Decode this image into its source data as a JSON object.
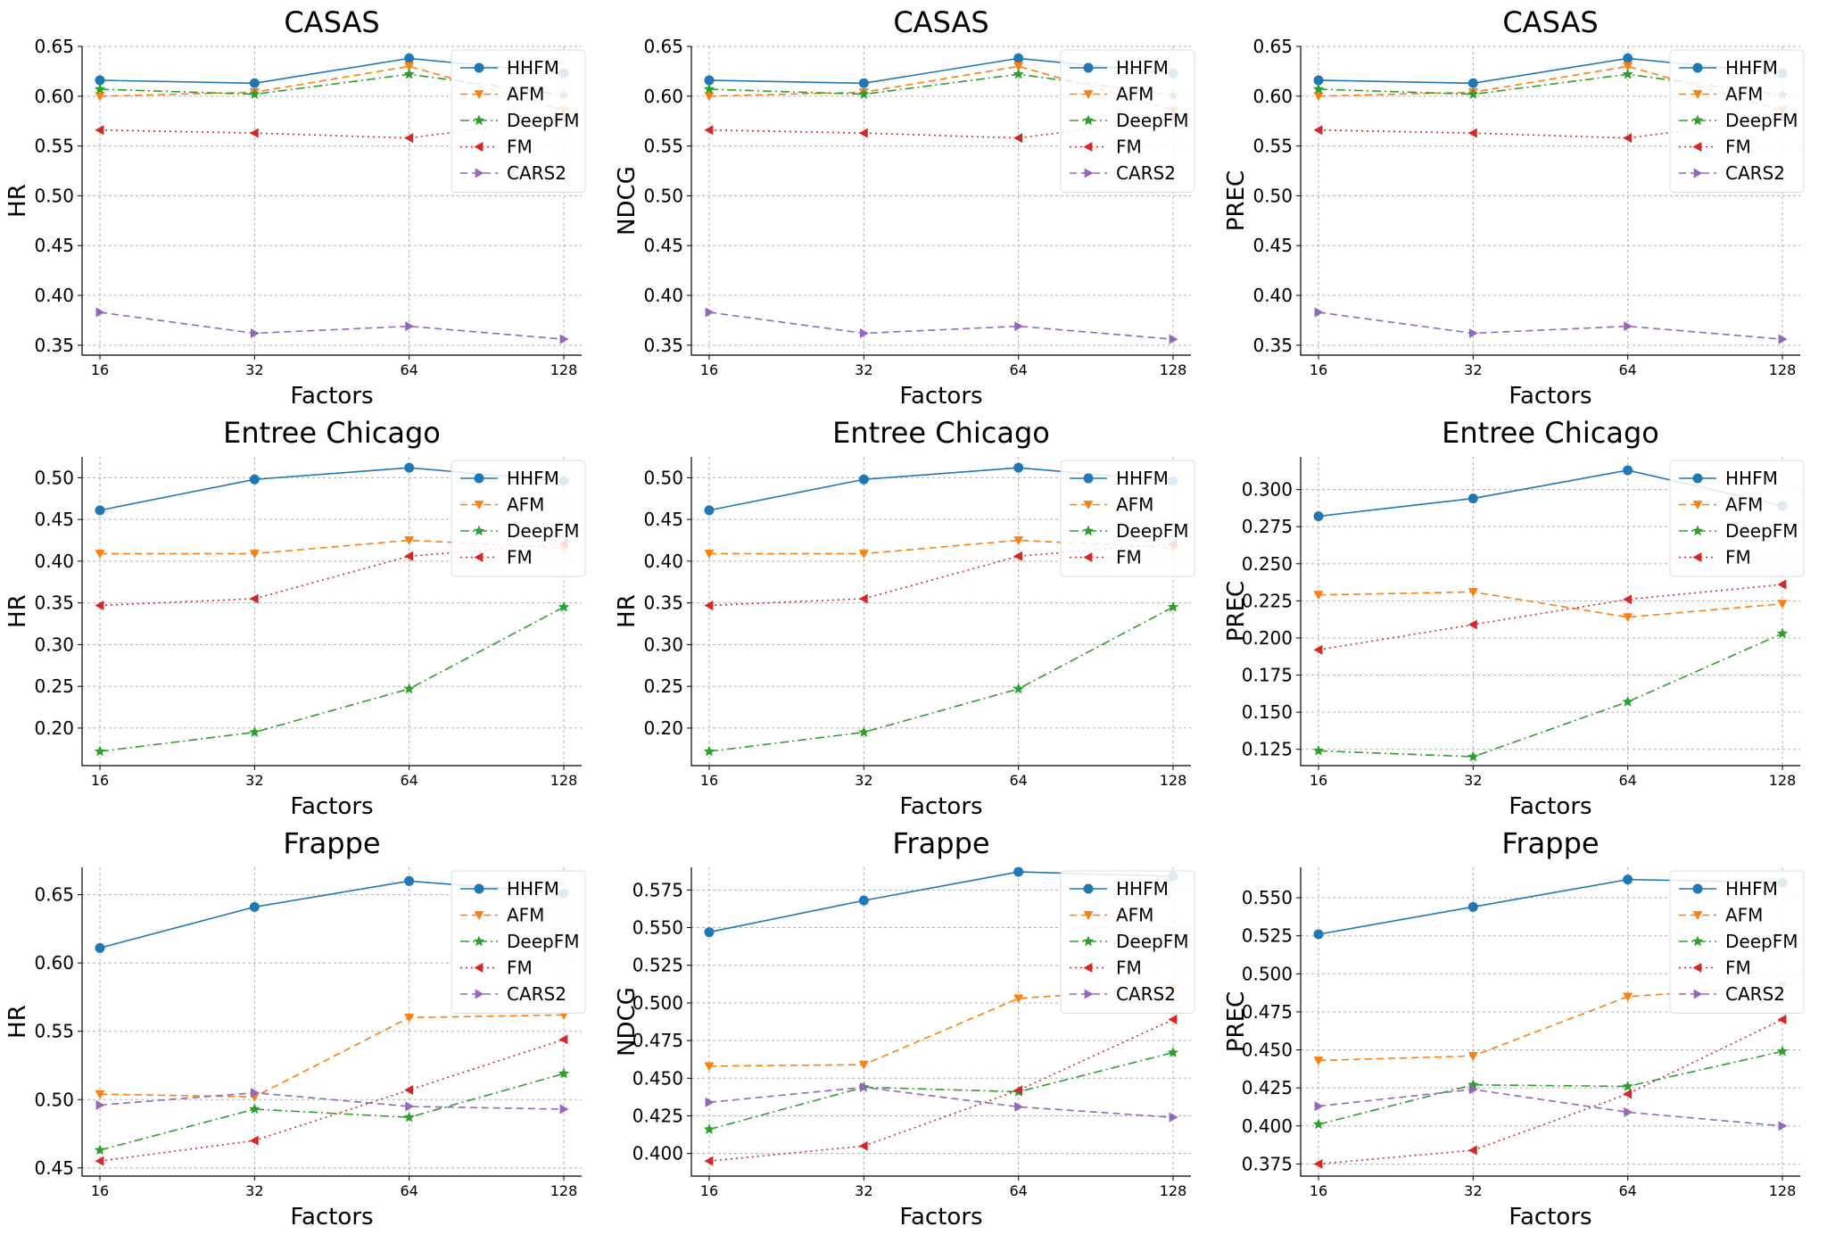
{
  "styles": {
    "HHFM": {
      "color": "#1f77b4",
      "dash": "",
      "marker": "circle"
    },
    "AFM": {
      "color": "#ff7f0e",
      "dash": "8,5",
      "marker": "triangle-down"
    },
    "DeepFM": {
      "color": "#2ca02c",
      "dash": "10,4,2,4",
      "marker": "star"
    },
    "FM": {
      "color": "#d62728",
      "dash": "2,4",
      "marker": "triangle-left"
    },
    "CARS2": {
      "color": "#9467bd",
      "dash": "8,5",
      "marker": "triangle-right"
    }
  },
  "chart_data": [
    {
      "type": "line",
      "title": "CASAS",
      "xlabel": "Factors",
      "ylabel": "HR",
      "categories": [
        "16",
        "32",
        "64",
        "128"
      ],
      "ylim": [
        0.34,
        0.65
      ],
      "yticks": [
        "0.35",
        "0.40",
        "0.45",
        "0.50",
        "0.55",
        "0.60",
        "0.65"
      ],
      "legend": "top-right",
      "grid": true,
      "series": [
        {
          "name": "HHFM",
          "values": [
            0.616,
            0.613,
            0.638,
            0.623
          ]
        },
        {
          "name": "AFM",
          "values": [
            0.6,
            0.604,
            0.63,
            0.586
          ]
        },
        {
          "name": "DeepFM",
          "values": [
            0.607,
            0.602,
            0.622,
            0.601
          ]
        },
        {
          "name": "FM",
          "values": [
            0.566,
            0.563,
            0.558,
            0.578
          ]
        },
        {
          "name": "CARS2",
          "values": [
            0.383,
            0.362,
            0.369,
            0.356
          ]
        }
      ]
    },
    {
      "type": "line",
      "title": "CASAS",
      "xlabel": "Factors",
      "ylabel": "NDCG",
      "categories": [
        "16",
        "32",
        "64",
        "128"
      ],
      "ylim": [
        0.34,
        0.65
      ],
      "yticks": [
        "0.35",
        "0.40",
        "0.45",
        "0.50",
        "0.55",
        "0.60",
        "0.65"
      ],
      "legend": "top-right",
      "grid": true,
      "series": [
        {
          "name": "HHFM",
          "values": [
            0.616,
            0.613,
            0.638,
            0.623
          ]
        },
        {
          "name": "AFM",
          "values": [
            0.6,
            0.604,
            0.63,
            0.586
          ]
        },
        {
          "name": "DeepFM",
          "values": [
            0.607,
            0.602,
            0.622,
            0.601
          ]
        },
        {
          "name": "FM",
          "values": [
            0.566,
            0.563,
            0.558,
            0.578
          ]
        },
        {
          "name": "CARS2",
          "values": [
            0.383,
            0.362,
            0.369,
            0.356
          ]
        }
      ]
    },
    {
      "type": "line",
      "title": "CASAS",
      "xlabel": "Factors",
      "ylabel": "PREC",
      "categories": [
        "16",
        "32",
        "64",
        "128"
      ],
      "ylim": [
        0.34,
        0.65
      ],
      "yticks": [
        "0.35",
        "0.40",
        "0.45",
        "0.50",
        "0.55",
        "0.60",
        "0.65"
      ],
      "legend": "top-right",
      "grid": true,
      "series": [
        {
          "name": "HHFM",
          "values": [
            0.616,
            0.613,
            0.638,
            0.623
          ]
        },
        {
          "name": "AFM",
          "values": [
            0.6,
            0.604,
            0.63,
            0.586
          ]
        },
        {
          "name": "DeepFM",
          "values": [
            0.607,
            0.602,
            0.622,
            0.601
          ]
        },
        {
          "name": "FM",
          "values": [
            0.566,
            0.563,
            0.558,
            0.578
          ]
        },
        {
          "name": "CARS2",
          "values": [
            0.383,
            0.362,
            0.369,
            0.356
          ]
        }
      ]
    },
    {
      "type": "line",
      "title": "Entree Chicago",
      "xlabel": "Factors",
      "ylabel": "HR",
      "categories": [
        "16",
        "32",
        "64",
        "128"
      ],
      "ylim": [
        0.155,
        0.525
      ],
      "yticks": [
        "0.20",
        "0.25",
        "0.30",
        "0.35",
        "0.40",
        "0.45",
        "0.50"
      ],
      "legend": "top-right",
      "grid": true,
      "series": [
        {
          "name": "HHFM",
          "values": [
            0.461,
            0.498,
            0.512,
            0.496
          ]
        },
        {
          "name": "AFM",
          "values": [
            0.409,
            0.409,
            0.425,
            0.416
          ]
        },
        {
          "name": "DeepFM",
          "values": [
            0.172,
            0.195,
            0.247,
            0.345
          ]
        },
        {
          "name": "FM",
          "values": [
            0.347,
            0.355,
            0.406,
            0.421
          ]
        }
      ]
    },
    {
      "type": "line",
      "title": "Entree Chicago",
      "xlabel": "Factors",
      "ylabel": "HR",
      "categories": [
        "16",
        "32",
        "64",
        "128"
      ],
      "ylim": [
        0.155,
        0.525
      ],
      "yticks": [
        "0.20",
        "0.25",
        "0.30",
        "0.35",
        "0.40",
        "0.45",
        "0.50"
      ],
      "legend": "top-right",
      "grid": true,
      "series": [
        {
          "name": "HHFM",
          "values": [
            0.461,
            0.498,
            0.512,
            0.496
          ]
        },
        {
          "name": "AFM",
          "values": [
            0.409,
            0.409,
            0.425,
            0.416
          ]
        },
        {
          "name": "DeepFM",
          "values": [
            0.172,
            0.195,
            0.247,
            0.345
          ]
        },
        {
          "name": "FM",
          "values": [
            0.347,
            0.355,
            0.406,
            0.421
          ]
        }
      ]
    },
    {
      "type": "line",
      "title": "Entree Chicago",
      "xlabel": "Factors",
      "ylabel": "PREC",
      "categories": [
        "16",
        "32",
        "64",
        "128"
      ],
      "ylim": [
        0.114,
        0.322
      ],
      "yticks": [
        "0.125",
        "0.150",
        "0.175",
        "0.200",
        "0.225",
        "0.250",
        "0.275",
        "0.300"
      ],
      "legend": "top-right",
      "grid": true,
      "series": [
        {
          "name": "HHFM",
          "values": [
            0.282,
            0.294,
            0.313,
            0.289
          ]
        },
        {
          "name": "AFM",
          "values": [
            0.229,
            0.231,
            0.214,
            0.223
          ]
        },
        {
          "name": "DeepFM",
          "values": [
            0.124,
            0.12,
            0.157,
            0.203
          ]
        },
        {
          "name": "FM",
          "values": [
            0.192,
            0.209,
            0.226,
            0.236
          ]
        }
      ]
    },
    {
      "type": "line",
      "title": "Frappe",
      "xlabel": "Factors",
      "ylabel": "HR",
      "categories": [
        "16",
        "32",
        "64",
        "128"
      ],
      "ylim": [
        0.444,
        0.67
      ],
      "yticks": [
        "0.45",
        "0.50",
        "0.55",
        "0.60",
        "0.65"
      ],
      "legend": "top-right",
      "grid": true,
      "series": [
        {
          "name": "HHFM",
          "values": [
            0.611,
            0.641,
            0.66,
            0.651
          ]
        },
        {
          "name": "AFM",
          "values": [
            0.504,
            0.502,
            0.56,
            0.562
          ]
        },
        {
          "name": "DeepFM",
          "values": [
            0.463,
            0.493,
            0.487,
            0.519
          ]
        },
        {
          "name": "FM",
          "values": [
            0.455,
            0.47,
            0.507,
            0.544
          ]
        },
        {
          "name": "CARS2",
          "values": [
            0.496,
            0.505,
            0.495,
            0.493
          ]
        }
      ]
    },
    {
      "type": "line",
      "title": "Frappe",
      "xlabel": "Factors",
      "ylabel": "NDCG",
      "categories": [
        "16",
        "32",
        "64",
        "128"
      ],
      "ylim": [
        0.385,
        0.59
      ],
      "yticks": [
        "0.400",
        "0.425",
        "0.450",
        "0.475",
        "0.500",
        "0.525",
        "0.550",
        "0.575"
      ],
      "legend": "top-right",
      "grid": true,
      "series": [
        {
          "name": "HHFM",
          "values": [
            0.547,
            0.568,
            0.587,
            0.584
          ]
        },
        {
          "name": "AFM",
          "values": [
            0.458,
            0.459,
            0.503,
            0.51
          ]
        },
        {
          "name": "DeepFM",
          "values": [
            0.416,
            0.444,
            0.441,
            0.467
          ]
        },
        {
          "name": "FM",
          "values": [
            0.395,
            0.405,
            0.442,
            0.489
          ]
        },
        {
          "name": "CARS2",
          "values": [
            0.434,
            0.444,
            0.431,
            0.424
          ]
        }
      ]
    },
    {
      "type": "line",
      "title": "Frappe",
      "xlabel": "Factors",
      "ylabel": "PREC",
      "categories": [
        "16",
        "32",
        "64",
        "128"
      ],
      "ylim": [
        0.367,
        0.57
      ],
      "yticks": [
        "0.375",
        "0.400",
        "0.425",
        "0.450",
        "0.475",
        "0.500",
        "0.525",
        "0.550"
      ],
      "legend": "top-right",
      "grid": true,
      "series": [
        {
          "name": "HHFM",
          "values": [
            0.526,
            0.544,
            0.562,
            0.56
          ]
        },
        {
          "name": "AFM",
          "values": [
            0.443,
            0.446,
            0.485,
            0.492
          ]
        },
        {
          "name": "DeepFM",
          "values": [
            0.401,
            0.427,
            0.426,
            0.449
          ]
        },
        {
          "name": "FM",
          "values": [
            0.375,
            0.384,
            0.421,
            0.47
          ]
        },
        {
          "name": "CARS2",
          "values": [
            0.413,
            0.424,
            0.409,
            0.4
          ]
        }
      ]
    }
  ]
}
